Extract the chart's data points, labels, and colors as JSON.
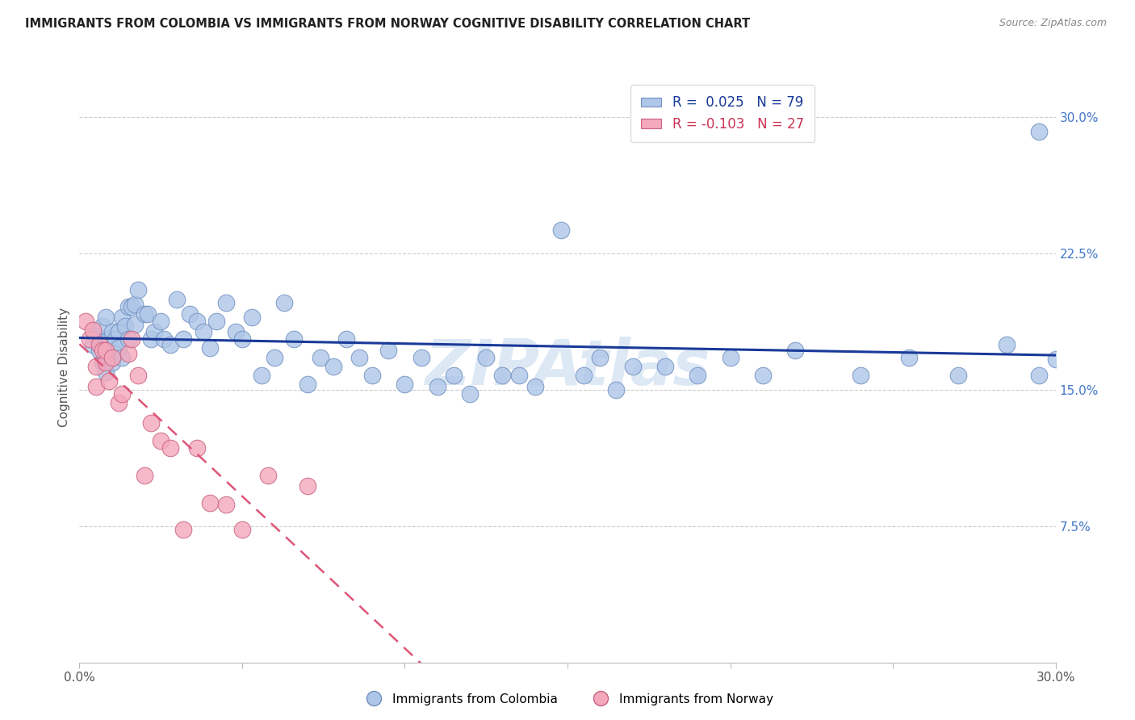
{
  "title": "IMMIGRANTS FROM COLOMBIA VS IMMIGRANTS FROM NORWAY COGNITIVE DISABILITY CORRELATION CHART",
  "source": "Source: ZipAtlas.com",
  "ylabel": "Cognitive Disability",
  "xmin": 0.0,
  "xmax": 0.3,
  "ymin": 0.0,
  "ymax": 0.325,
  "colombia_color": "#aec6e8",
  "colombia_edge": "#7090c0",
  "norway_color": "#f4a8bc",
  "norway_edge": "#c86080",
  "colombia_R": 0.025,
  "colombia_N": 79,
  "norway_R": -0.103,
  "norway_N": 27,
  "trend_colombia_color": "#1a3a99",
  "trend_norway_color": "#dd5577",
  "watermark": "ZIPAtlas",
  "colombia_x": [
    0.004,
    0.005,
    0.006,
    0.007,
    0.007,
    0.008,
    0.008,
    0.009,
    0.009,
    0.01,
    0.01,
    0.011,
    0.011,
    0.012,
    0.012,
    0.013,
    0.013,
    0.014,
    0.015,
    0.015,
    0.016,
    0.017,
    0.017,
    0.018,
    0.02,
    0.021,
    0.022,
    0.023,
    0.025,
    0.026,
    0.028,
    0.03,
    0.032,
    0.034,
    0.036,
    0.038,
    0.04,
    0.042,
    0.045,
    0.048,
    0.05,
    0.053,
    0.056,
    0.06,
    0.063,
    0.066,
    0.07,
    0.074,
    0.078,
    0.082,
    0.086,
    0.09,
    0.095,
    0.1,
    0.105,
    0.11,
    0.115,
    0.12,
    0.125,
    0.13,
    0.135,
    0.14,
    0.148,
    0.155,
    0.16,
    0.165,
    0.17,
    0.18,
    0.19,
    0.2,
    0.21,
    0.22,
    0.24,
    0.255,
    0.27,
    0.285,
    0.295,
    0.3,
    0.295
  ],
  "colombia_y": [
    0.175,
    0.18,
    0.172,
    0.185,
    0.165,
    0.19,
    0.16,
    0.178,
    0.168,
    0.182,
    0.165,
    0.178,
    0.17,
    0.182,
    0.173,
    0.168,
    0.19,
    0.185,
    0.178,
    0.196,
    0.196,
    0.186,
    0.197,
    0.205,
    0.192,
    0.192,
    0.178,
    0.182,
    0.188,
    0.178,
    0.175,
    0.2,
    0.178,
    0.192,
    0.188,
    0.182,
    0.173,
    0.188,
    0.198,
    0.182,
    0.178,
    0.19,
    0.158,
    0.168,
    0.198,
    0.178,
    0.153,
    0.168,
    0.163,
    0.178,
    0.168,
    0.158,
    0.172,
    0.153,
    0.168,
    0.152,
    0.158,
    0.148,
    0.168,
    0.158,
    0.158,
    0.152,
    0.238,
    0.158,
    0.168,
    0.15,
    0.163,
    0.163,
    0.158,
    0.168,
    0.158,
    0.172,
    0.158,
    0.168,
    0.158,
    0.175,
    0.158,
    0.167,
    0.292
  ],
  "norway_x": [
    0.002,
    0.003,
    0.004,
    0.005,
    0.005,
    0.006,
    0.007,
    0.008,
    0.008,
    0.009,
    0.01,
    0.012,
    0.013,
    0.015,
    0.016,
    0.018,
    0.02,
    0.022,
    0.025,
    0.028,
    0.032,
    0.036,
    0.04,
    0.045,
    0.05,
    0.058,
    0.07
  ],
  "norway_y": [
    0.188,
    0.178,
    0.183,
    0.163,
    0.152,
    0.175,
    0.172,
    0.165,
    0.172,
    0.155,
    0.168,
    0.143,
    0.148,
    0.17,
    0.178,
    0.158,
    0.103,
    0.132,
    0.122,
    0.118,
    0.073,
    0.118,
    0.088,
    0.087,
    0.073,
    0.103,
    0.097
  ]
}
